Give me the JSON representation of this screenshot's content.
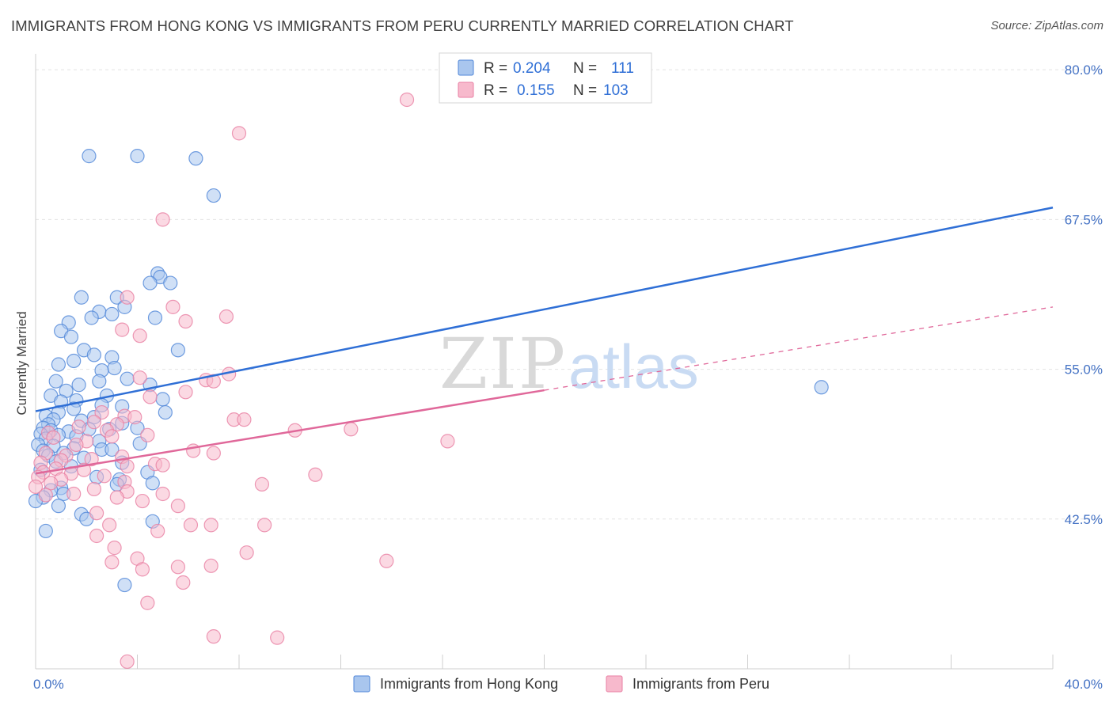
{
  "title": "IMMIGRANTS FROM HONG KONG VS IMMIGRANTS FROM PERU CURRENTLY MARRIED CORRELATION CHART",
  "source": "Source: ZipAtlas.com",
  "watermark": {
    "zip": "ZIP",
    "atlas": "atlas"
  },
  "colors": {
    "hong_kong_fill": "#a9c6ee",
    "hong_kong_stroke": "#4f86d8",
    "hong_kong_line": "#2f6fd6",
    "peru_fill": "#f7b9cc",
    "peru_stroke": "#e87fa3",
    "peru_line": "#e0689a",
    "grid": "#e3e3e3",
    "axis_text": "#4472c4"
  },
  "chart_data": {
    "type": "scatter",
    "ylabel": "Currently Married",
    "xlim": [
      0,
      40
    ],
    "ylim": [
      30,
      81
    ],
    "x_ticks": [
      {
        "value": 0,
        "label": "0.0%"
      },
      {
        "value": 40,
        "label": "40.0%"
      }
    ],
    "y_ticks": [
      {
        "value": 42.5,
        "label": "42.5%"
      },
      {
        "value": 55.0,
        "label": "55.0%"
      },
      {
        "value": 67.5,
        "label": "67.5%"
      },
      {
        "value": 80.0,
        "label": "80.0%"
      }
    ],
    "legend": {
      "rows": [
        {
          "r_label": "R =",
          "r_value": "0.204",
          "n_label": "N =",
          "n_value": "111"
        },
        {
          "r_label": "R =",
          "r_value": "0.155",
          "n_label": "N =",
          "n_value": "103"
        }
      ]
    },
    "series": [
      {
        "name": "Immigrants from Hong Kong",
        "trend": {
          "x": [
            0,
            40
          ],
          "y": [
            51.5,
            68.5
          ],
          "dashed_from": null
        },
        "points": [
          [
            2.1,
            72.8
          ],
          [
            4.0,
            72.8
          ],
          [
            6.3,
            72.6
          ],
          [
            7.0,
            69.5
          ],
          [
            4.8,
            63.0
          ],
          [
            4.9,
            62.7
          ],
          [
            5.3,
            62.2
          ],
          [
            4.5,
            62.2
          ],
          [
            1.8,
            61.0
          ],
          [
            3.2,
            61.0
          ],
          [
            3.5,
            60.2
          ],
          [
            2.5,
            59.8
          ],
          [
            3.0,
            59.6
          ],
          [
            1.3,
            58.9
          ],
          [
            2.2,
            59.3
          ],
          [
            4.7,
            59.3
          ],
          [
            1.0,
            58.2
          ],
          [
            1.4,
            57.7
          ],
          [
            5.6,
            56.6
          ],
          [
            1.9,
            56.6
          ],
          [
            2.3,
            56.2
          ],
          [
            3.0,
            56.0
          ],
          [
            1.5,
            55.7
          ],
          [
            0.9,
            55.4
          ],
          [
            3.1,
            55.1
          ],
          [
            2.6,
            54.9
          ],
          [
            3.6,
            54.2
          ],
          [
            2.5,
            54.0
          ],
          [
            0.8,
            54.0
          ],
          [
            1.7,
            53.7
          ],
          [
            4.5,
            53.7
          ],
          [
            1.2,
            53.2
          ],
          [
            0.6,
            52.8
          ],
          [
            2.8,
            52.8
          ],
          [
            1.6,
            52.4
          ],
          [
            5.0,
            52.5
          ],
          [
            1.0,
            52.3
          ],
          [
            2.6,
            52.0
          ],
          [
            3.4,
            51.9
          ],
          [
            1.5,
            51.7
          ],
          [
            0.9,
            51.4
          ],
          [
            5.1,
            51.4
          ],
          [
            0.4,
            51.1
          ],
          [
            2.3,
            51.0
          ],
          [
            0.7,
            50.8
          ],
          [
            1.8,
            50.7
          ],
          [
            0.5,
            50.4
          ],
          [
            3.4,
            50.5
          ],
          [
            0.3,
            50.1
          ],
          [
            4.0,
            50.1
          ],
          [
            2.1,
            50.0
          ],
          [
            2.9,
            50.0
          ],
          [
            0.6,
            49.9
          ],
          [
            1.3,
            49.8
          ],
          [
            0.2,
            49.6
          ],
          [
            0.9,
            49.5
          ],
          [
            1.6,
            49.4
          ],
          [
            0.4,
            49.2
          ],
          [
            2.5,
            49.0
          ],
          [
            4.1,
            48.8
          ],
          [
            0.1,
            48.7
          ],
          [
            0.7,
            48.6
          ],
          [
            1.5,
            48.4
          ],
          [
            2.6,
            48.3
          ],
          [
            0.3,
            48.2
          ],
          [
            3.0,
            48.3
          ],
          [
            1.1,
            48.0
          ],
          [
            0.5,
            47.8
          ],
          [
            1.9,
            47.6
          ],
          [
            0.8,
            47.3
          ],
          [
            3.4,
            47.2
          ],
          [
            1.4,
            46.9
          ],
          [
            0.2,
            46.6
          ],
          [
            4.4,
            46.4
          ],
          [
            2.4,
            46.0
          ],
          [
            3.3,
            45.8
          ],
          [
            4.6,
            45.5
          ],
          [
            3.2,
            45.4
          ],
          [
            1.0,
            45.1
          ],
          [
            0.6,
            44.9
          ],
          [
            1.1,
            44.6
          ],
          [
            0.3,
            44.3
          ],
          [
            0.0,
            44.0
          ],
          [
            0.9,
            43.6
          ],
          [
            1.8,
            42.9
          ],
          [
            2.0,
            42.5
          ],
          [
            4.6,
            42.3
          ],
          [
            0.4,
            41.5
          ],
          [
            3.5,
            37.0
          ],
          [
            30.9,
            53.5
          ]
        ]
      },
      {
        "name": "Immigrants from Peru",
        "trend": {
          "x": [
            0,
            40
          ],
          "y": [
            46.3,
            60.2
          ],
          "dashed_from": 20
        },
        "points": [
          [
            14.6,
            77.5
          ],
          [
            8.0,
            74.7
          ],
          [
            5.0,
            67.5
          ],
          [
            3.6,
            61.0
          ],
          [
            5.4,
            60.2
          ],
          [
            7.5,
            59.4
          ],
          [
            5.9,
            59.0
          ],
          [
            3.4,
            58.3
          ],
          [
            4.1,
            57.8
          ],
          [
            7.6,
            54.6
          ],
          [
            4.1,
            54.3
          ],
          [
            6.7,
            54.1
          ],
          [
            7.0,
            54.0
          ],
          [
            5.9,
            53.1
          ],
          [
            4.5,
            52.7
          ],
          [
            2.6,
            51.4
          ],
          [
            3.5,
            51.1
          ],
          [
            3.9,
            51.0
          ],
          [
            7.8,
            50.8
          ],
          [
            8.2,
            50.8
          ],
          [
            2.3,
            50.6
          ],
          [
            3.2,
            50.4
          ],
          [
            1.7,
            50.2
          ],
          [
            10.2,
            49.9
          ],
          [
            12.4,
            50.0
          ],
          [
            2.8,
            49.9
          ],
          [
            0.5,
            49.7
          ],
          [
            3.0,
            49.4
          ],
          [
            4.4,
            49.5
          ],
          [
            0.7,
            49.3
          ],
          [
            2.0,
            49.0
          ],
          [
            1.6,
            48.7
          ],
          [
            16.2,
            49.0
          ],
          [
            6.2,
            48.2
          ],
          [
            7.0,
            48.0
          ],
          [
            0.4,
            48.0
          ],
          [
            1.2,
            47.8
          ],
          [
            3.4,
            47.7
          ],
          [
            2.2,
            47.5
          ],
          [
            1.0,
            47.4
          ],
          [
            0.2,
            47.2
          ],
          [
            4.7,
            47.1
          ],
          [
            5.0,
            47.0
          ],
          [
            3.6,
            46.9
          ],
          [
            0.8,
            46.7
          ],
          [
            1.9,
            46.6
          ],
          [
            0.3,
            46.4
          ],
          [
            1.4,
            46.3
          ],
          [
            2.7,
            46.1
          ],
          [
            11.0,
            46.2
          ],
          [
            0.1,
            46.0
          ],
          [
            1.0,
            45.8
          ],
          [
            3.5,
            45.6
          ],
          [
            0.6,
            45.5
          ],
          [
            8.9,
            45.4
          ],
          [
            0.0,
            45.2
          ],
          [
            2.3,
            45.0
          ],
          [
            3.6,
            44.8
          ],
          [
            5.0,
            44.6
          ],
          [
            1.5,
            44.6
          ],
          [
            0.4,
            44.5
          ],
          [
            3.2,
            44.3
          ],
          [
            4.2,
            44.0
          ],
          [
            5.6,
            43.6
          ],
          [
            2.4,
            43.0
          ],
          [
            9.0,
            42.0
          ],
          [
            6.1,
            42.0
          ],
          [
            6.9,
            42.0
          ],
          [
            2.9,
            42.0
          ],
          [
            4.8,
            41.5
          ],
          [
            2.4,
            41.1
          ],
          [
            3.1,
            40.1
          ],
          [
            8.3,
            39.7
          ],
          [
            4.0,
            39.2
          ],
          [
            13.8,
            39.0
          ],
          [
            3.0,
            38.9
          ],
          [
            5.6,
            38.5
          ],
          [
            4.2,
            38.3
          ],
          [
            6.9,
            38.6
          ],
          [
            5.8,
            37.2
          ],
          [
            4.4,
            35.5
          ],
          [
            7.0,
            32.7
          ],
          [
            9.5,
            32.6
          ],
          [
            3.6,
            30.6
          ]
        ]
      }
    ]
  }
}
